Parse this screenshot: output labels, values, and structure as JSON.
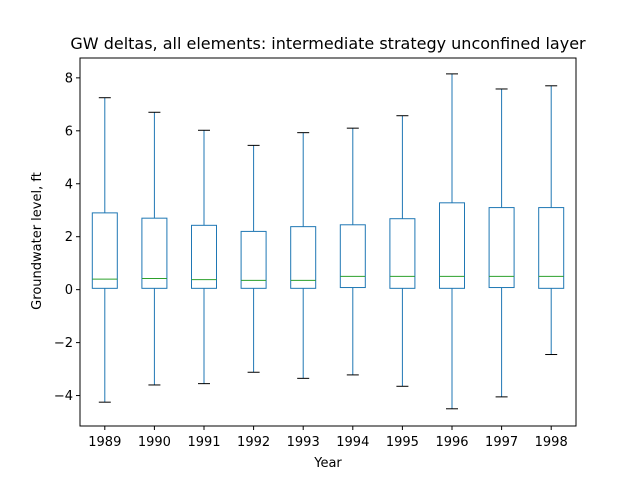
{
  "chart_data": {
    "type": "box",
    "title": "GW deltas, all elements: intermediate strategy unconfined layer",
    "xlabel": "Year",
    "ylabel": "Groundwater level, ft",
    "ylim": [
      -5.15,
      8.75
    ],
    "yticks": [
      -4,
      -2,
      0,
      2,
      4,
      6,
      8
    ],
    "yticklabels": [
      "−4",
      "−2",
      "0",
      "2",
      "4",
      "6",
      "8"
    ],
    "grid": false,
    "categories": [
      "1989",
      "1990",
      "1991",
      "1992",
      "1993",
      "1994",
      "1995",
      "1996",
      "1997",
      "1998"
    ],
    "boxes": [
      {
        "whisker_low": -4.25,
        "q1": 0.05,
        "median": 0.4,
        "q3": 2.9,
        "whisker_high": 7.25
      },
      {
        "whisker_low": -3.6,
        "q1": 0.05,
        "median": 0.42,
        "q3": 2.7,
        "whisker_high": 6.7
      },
      {
        "whisker_low": -3.55,
        "q1": 0.05,
        "median": 0.38,
        "q3": 2.43,
        "whisker_high": 6.02
      },
      {
        "whisker_low": -3.12,
        "q1": 0.05,
        "median": 0.35,
        "q3": 2.2,
        "whisker_high": 5.45
      },
      {
        "whisker_low": -3.35,
        "q1": 0.05,
        "median": 0.35,
        "q3": 2.38,
        "whisker_high": 5.93
      },
      {
        "whisker_low": -3.22,
        "q1": 0.08,
        "median": 0.5,
        "q3": 2.45,
        "whisker_high": 6.1
      },
      {
        "whisker_low": -3.65,
        "q1": 0.05,
        "median": 0.5,
        "q3": 2.68,
        "whisker_high": 6.57
      },
      {
        "whisker_low": -4.5,
        "q1": 0.05,
        "median": 0.5,
        "q3": 3.28,
        "whisker_high": 8.15
      },
      {
        "whisker_low": -4.05,
        "q1": 0.08,
        "median": 0.5,
        "q3": 3.1,
        "whisker_high": 7.58
      },
      {
        "whisker_low": -2.45,
        "q1": 0.05,
        "median": 0.5,
        "q3": 3.1,
        "whisker_high": 7.7
      }
    ],
    "colors": {
      "box": "#1f77b4",
      "whisker": "#1f77b4",
      "cap": "#000000",
      "median": "#2ca02c",
      "axes": "#000000"
    }
  }
}
